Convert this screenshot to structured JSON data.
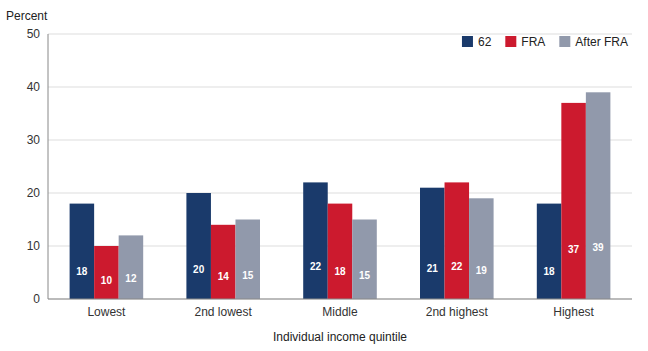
{
  "chart_data": {
    "type": "bar",
    "categories": [
      "Lowest",
      "2nd lowest",
      "Middle",
      "2nd highest",
      "Highest"
    ],
    "series": [
      {
        "name": "62",
        "color": "#1a3a6b",
        "values": [
          18,
          20,
          22,
          21,
          18
        ]
      },
      {
        "name": "FRA",
        "color": "#cc1a2e",
        "values": [
          10,
          14,
          18,
          22,
          37
        ]
      },
      {
        "name": "After FRA",
        "color": "#9199ab",
        "values": [
          12,
          15,
          15,
          19,
          39
        ]
      }
    ],
    "xlabel": "Individual income quintile",
    "ylabel": "Percent",
    "ylim": [
      0,
      50
    ],
    "yticks": [
      0,
      10,
      20,
      30,
      40,
      50
    ],
    "grid": true,
    "legend": "upper right",
    "data_labels": true
  }
}
